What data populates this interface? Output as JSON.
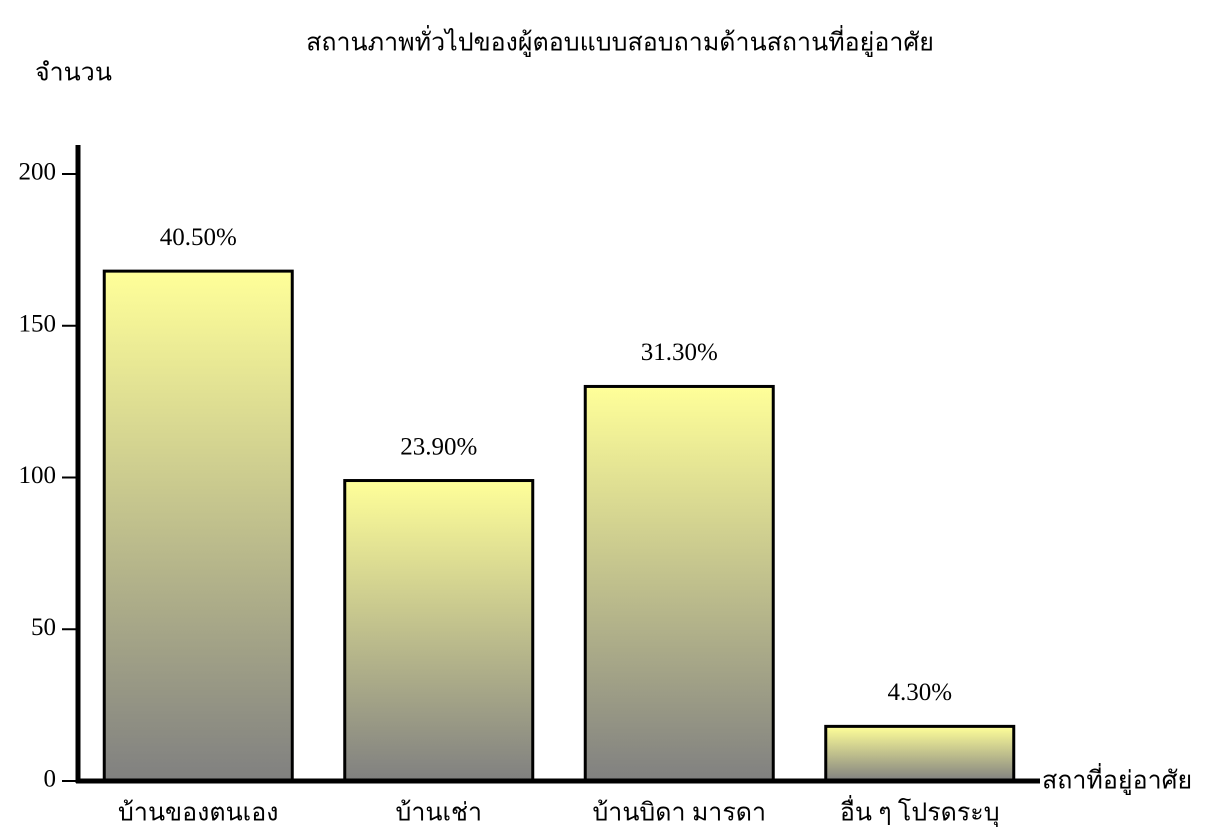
{
  "chart_data": {
    "type": "bar",
    "title": "สถานภาพทั่วไปของผู้ตอบแบบสอบถามด้านสถานที่อยู่อาศัย",
    "y_label": "จำนวน",
    "x_label": "สถาที่อยู่อาศัย",
    "categories": [
      "บ้านของตนเอง",
      "บ้านเช่า",
      "บ้านบิดา มารดา",
      "อื่น ๆ โปรดระบุ"
    ],
    "values": [
      168,
      99,
      130,
      18
    ],
    "percentages": [
      40.5,
      23.9,
      31.3,
      4.3
    ],
    "percentage_labels": [
      "40.50%",
      "23.90%",
      "31.30%",
      "4.30%"
    ],
    "gradient": [
      "#ffff99",
      "#808080"
    ],
    "ylim": [
      0,
      200
    ],
    "yticks": [
      0,
      50,
      100,
      150,
      200
    ],
    "grid": false
  }
}
